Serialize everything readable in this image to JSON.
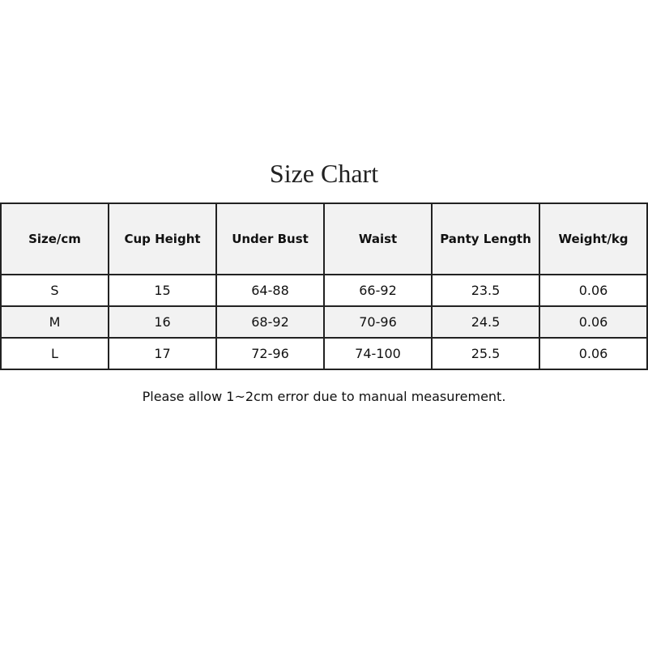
{
  "title": "Size Chart",
  "table": {
    "headers": [
      "Size/cm",
      "Cup Height",
      "Under Bust",
      "Waist",
      "Panty Length",
      "Weight/kg"
    ],
    "rows": [
      [
        "S",
        "15",
        "64-88",
        "66-92",
        "23.5",
        "0.06"
      ],
      [
        "M",
        "16",
        "68-92",
        "70-96",
        "24.5",
        "0.06"
      ],
      [
        "L",
        "17",
        "72-96",
        "74-100",
        "25.5",
        "0.06"
      ]
    ]
  },
  "note": "Please allow 1~2cm error due to manual measurement.",
  "colors": {
    "header_bg": "#f2f2f2",
    "border": "#222222"
  }
}
